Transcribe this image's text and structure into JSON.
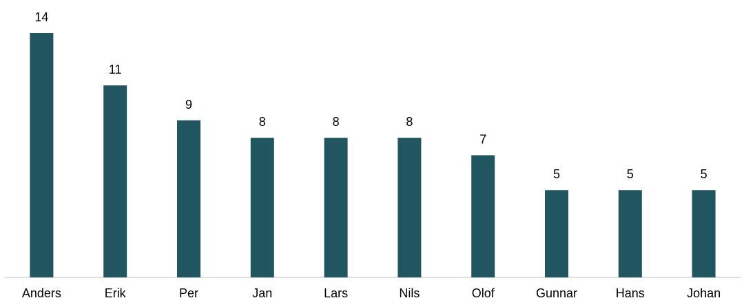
{
  "chart_data": {
    "type": "bar",
    "title": "",
    "xlabel": "",
    "ylabel": "",
    "categories": [
      "Anders",
      "Erik",
      "Per",
      "Jan",
      "Lars",
      "Nils",
      "Olof",
      "Gunnar",
      "Hans",
      "Johan"
    ],
    "values": [
      14,
      11,
      9,
      8,
      8,
      8,
      7,
      5,
      5,
      5
    ],
    "ylim": [
      0,
      14
    ],
    "grid": false,
    "legend": "none",
    "data_labels": true,
    "bar_color": "#215660",
    "axis_color": "#bfbfbf"
  }
}
